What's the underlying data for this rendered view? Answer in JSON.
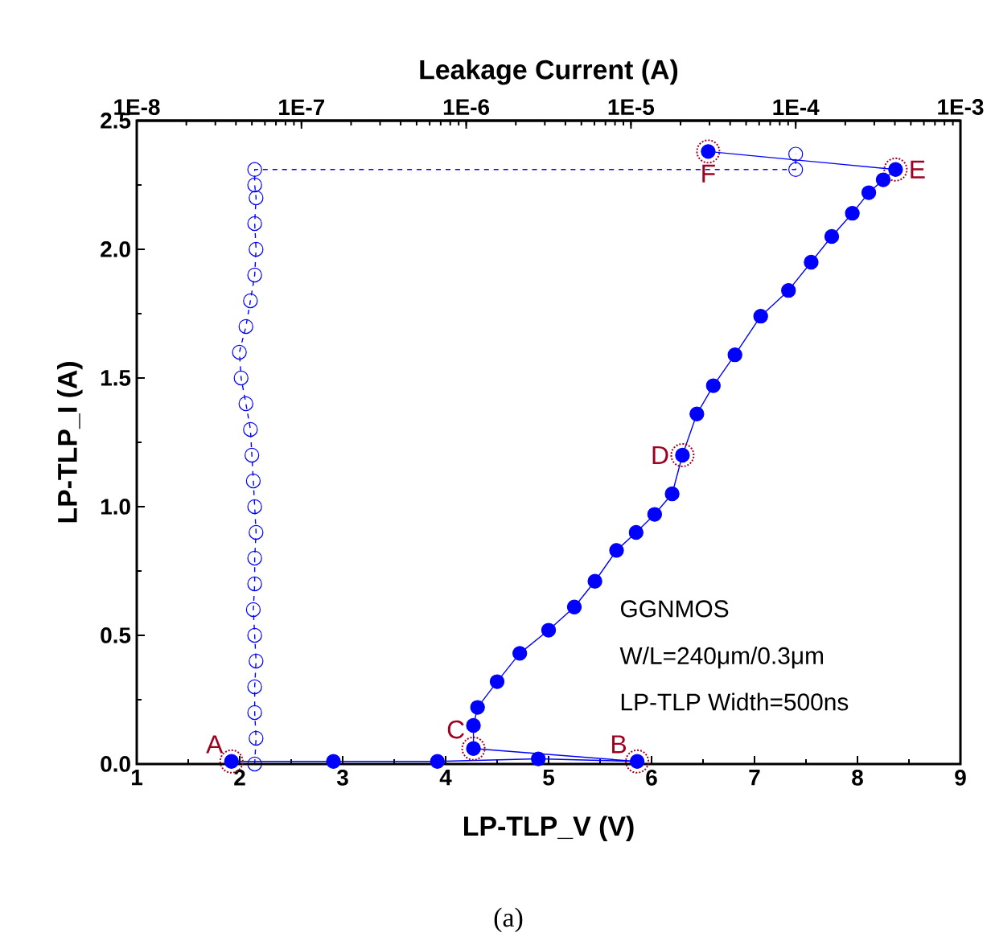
{
  "chart_data": {
    "type": "line",
    "xlabel": "LP-TLP_V (V)",
    "ylabel": "LP-TLP_I (A)",
    "x2label": "Leakage Current (A)",
    "xlim": [
      1,
      9
    ],
    "xticks": [
      1,
      2,
      3,
      4,
      5,
      6,
      7,
      8,
      9
    ],
    "x2lim": [
      1e-08,
      0.001
    ],
    "x2ticks": [
      {
        "value": 1e-08,
        "label": "1E-8"
      },
      {
        "value": 1e-07,
        "label": "1E-7"
      },
      {
        "value": 1e-06,
        "label": "1E-6"
      },
      {
        "value": 1e-05,
        "label": "1E-5"
      },
      {
        "value": 0.0001,
        "label": "1E-4"
      },
      {
        "value": 0.001,
        "label": "1E-3"
      }
    ],
    "ylim": [
      0,
      2.5
    ],
    "yticks": [
      {
        "value": 0,
        "label": "0.0"
      },
      {
        "value": 0.5,
        "label": "0.5"
      },
      {
        "value": 1,
        "label": "1.0"
      },
      {
        "value": 1.5,
        "label": "1.5"
      },
      {
        "value": 2,
        "label": "2.0"
      },
      {
        "value": 2.5,
        "label": "2.5"
      }
    ],
    "log": "x2",
    "marker": "circle",
    "grid": false,
    "series": [
      {
        "color": "#0000ff",
        "line_style": "solid",
        "x": [
          1.92,
          2.91,
          3.92,
          4.9,
          5.86,
          4.27,
          4.27,
          4.31,
          4.5,
          4.72,
          5.0,
          5.25,
          5.45,
          5.66,
          5.85,
          6.03,
          6.2,
          6.3,
          6.44,
          6.6,
          6.81,
          7.06,
          7.33,
          7.55,
          7.75,
          7.95,
          8.11,
          8.25,
          8.37,
          6.55
        ],
        "values": [
          0.01,
          0.01,
          0.01,
          0.02,
          0.01,
          0.06,
          0.15,
          0.22,
          0.32,
          0.43,
          0.52,
          0.61,
          0.71,
          0.83,
          0.9,
          0.97,
          1.05,
          1.2,
          1.36,
          1.47,
          1.59,
          1.74,
          1.84,
          1.95,
          2.05,
          2.14,
          2.22,
          2.27,
          2.31,
          2.38
        ]
      },
      {
        "color": "#0000ff",
        "line_style": "dashed",
        "axis": "x2",
        "x": [
          5.2e-08,
          5.3e-08,
          5.2e-08,
          5.2e-08,
          5.3e-08,
          5.2e-08,
          5.1e-08,
          5.2e-08,
          5.2e-08,
          5.3e-08,
          5.2e-08,
          5.1e-08,
          5e-08,
          4.9e-08,
          4.6e-08,
          4.3e-08,
          4.2e-08,
          4.6e-08,
          4.9e-08,
          5.2e-08,
          5.3e-08,
          5.2e-08,
          5.3e-08,
          5.2e-08,
          5.2e-08,
          0.0001,
          0.0001
        ],
        "values": [
          0,
          0.1,
          0.2,
          0.3,
          0.4,
          0.5,
          0.6,
          0.7,
          0.8,
          0.9,
          1.0,
          1.1,
          1.2,
          1.3,
          1.4,
          1.5,
          1.6,
          1.7,
          1.8,
          1.9,
          2.0,
          2.1,
          2.2,
          2.25,
          2.31,
          2.31,
          2.37
        ]
      }
    ],
    "annotations": [
      {
        "text": "A",
        "x": 1.92,
        "y": 0.01
      },
      {
        "text": "B",
        "x": 5.86,
        "y": 0.01
      },
      {
        "text": "C",
        "x": 4.27,
        "y": 0.06
      },
      {
        "text": "D",
        "x": 6.3,
        "y": 1.2
      },
      {
        "text": "E",
        "x": 8.37,
        "y": 2.31
      },
      {
        "text": "F",
        "x": 6.55,
        "y": 2.38
      },
      "GGNMOS",
      "W/L=240μm/0.3μm",
      "LP-TLP Width=500ns",
      "(a)"
    ]
  }
}
